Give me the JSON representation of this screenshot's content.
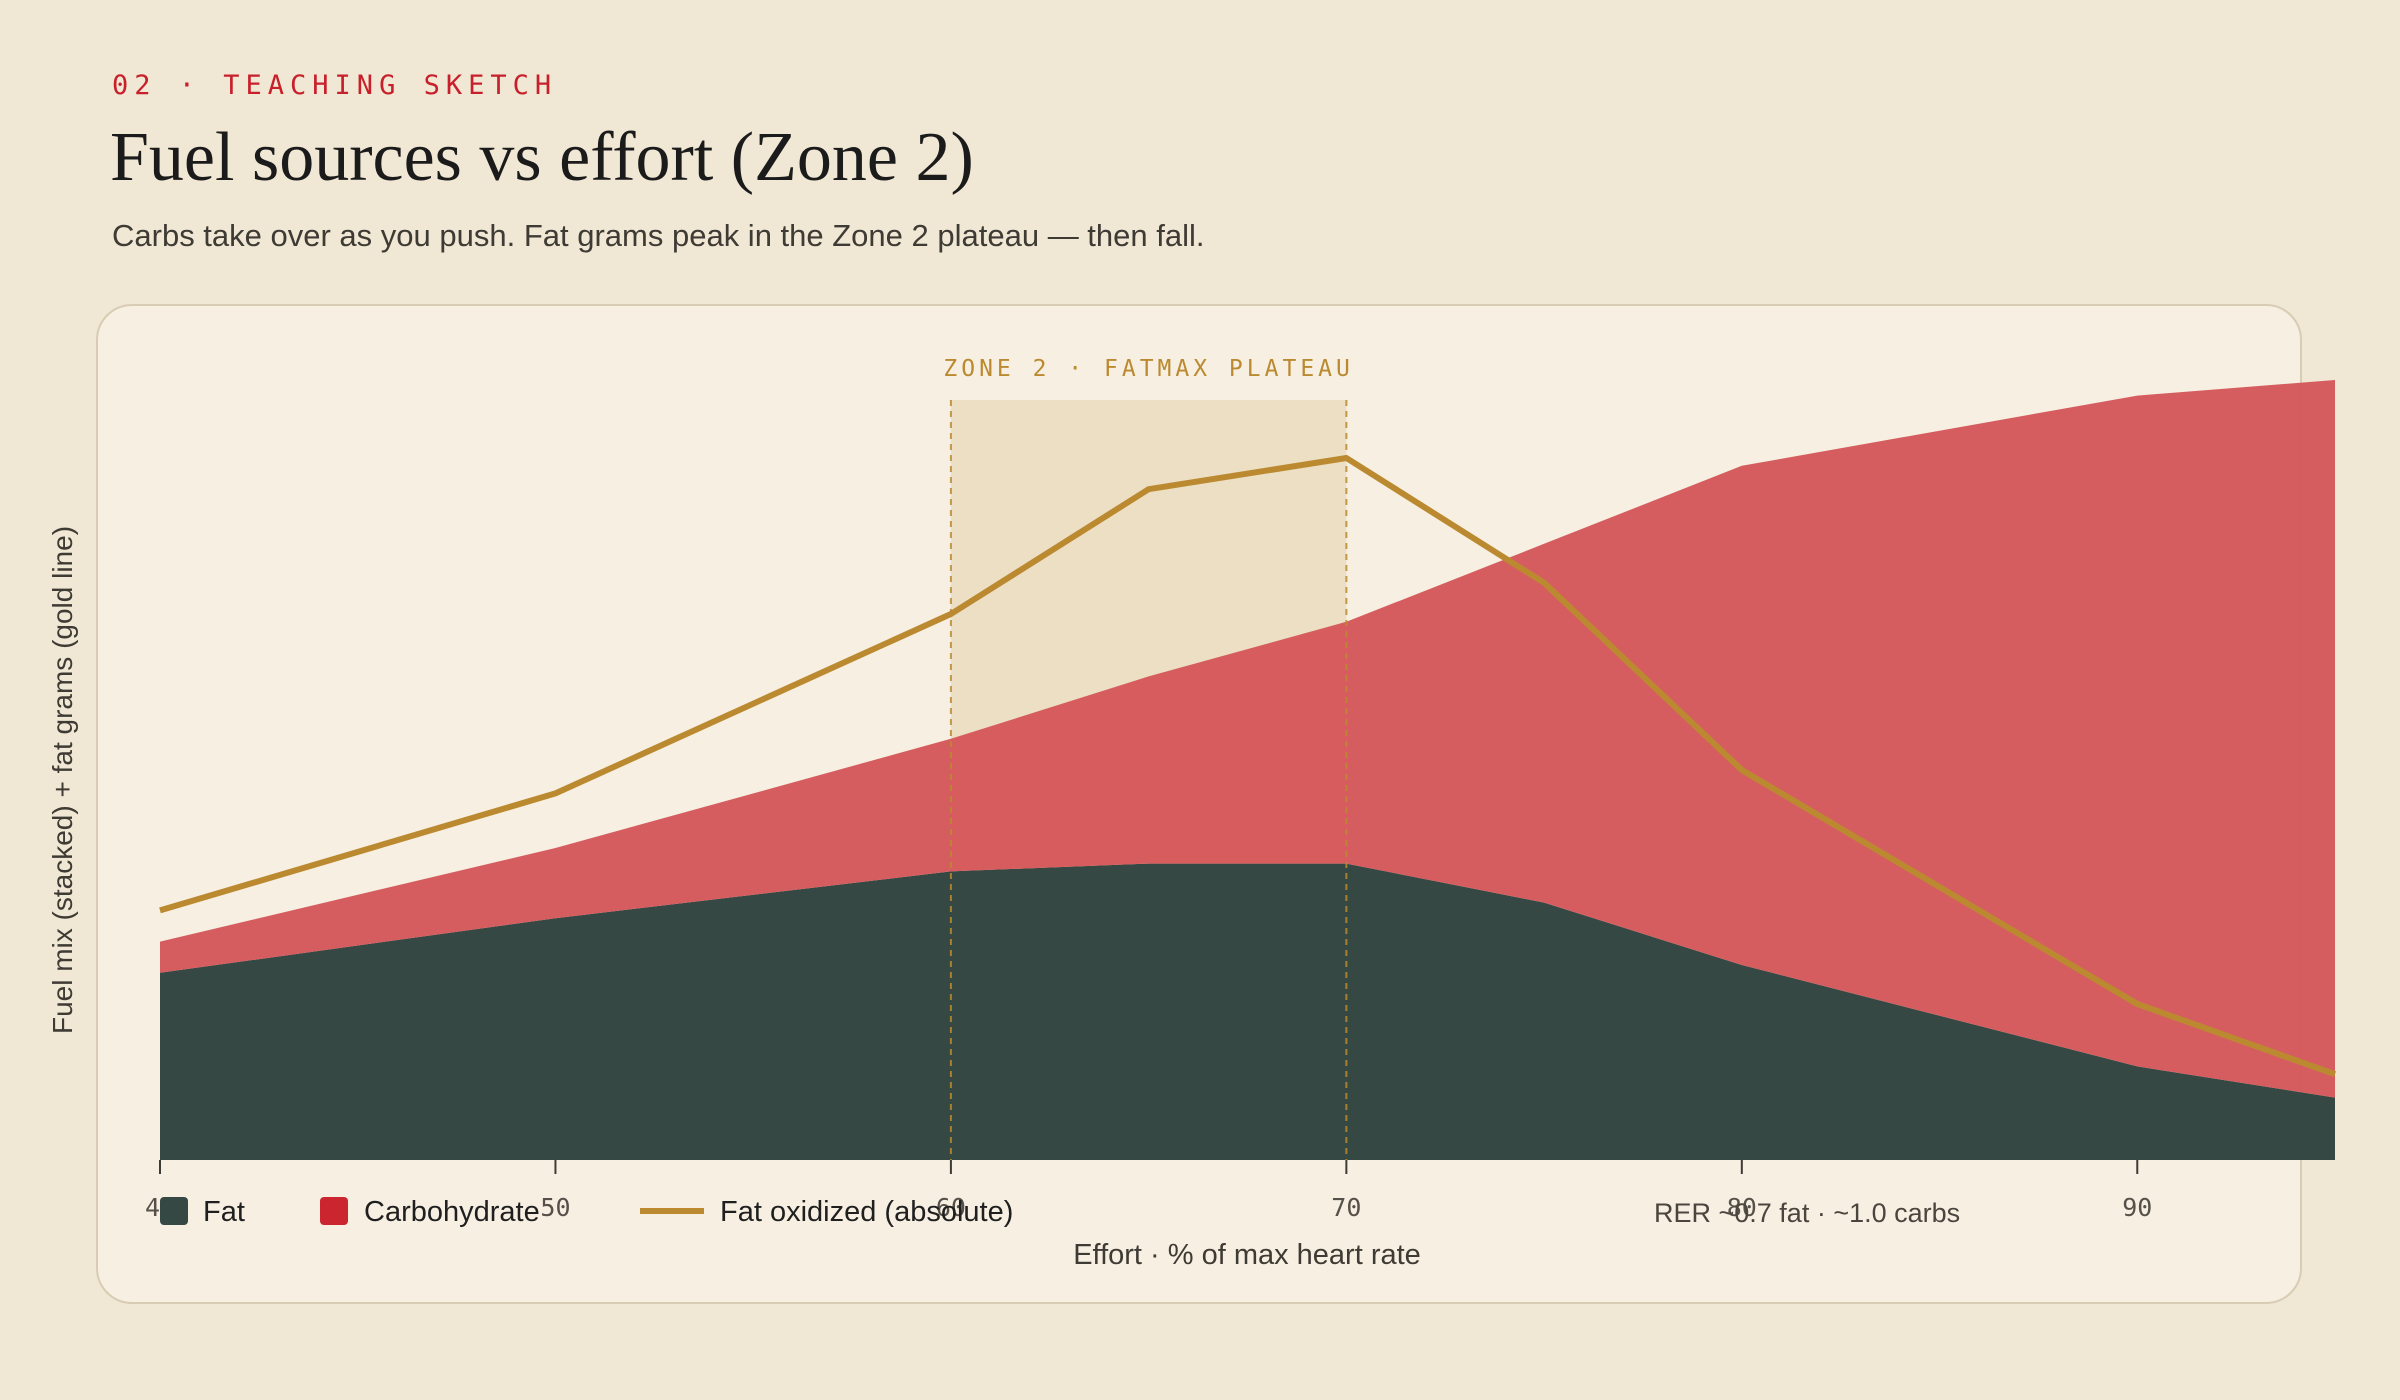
{
  "header": {
    "eyebrow": "02 · TEACHING SKETCH",
    "title": "Fuel sources vs effort (Zone 2)",
    "subtitle": "Carbs take over as you push. Fat grams peak in the Zone 2 plateau — then fall."
  },
  "colors": {
    "fat": "#354843",
    "carbohydrate": "#d5585b",
    "fat_line": "#bb8a30",
    "zone_band": "#ecdfc4",
    "zone_label": "#bb8a30"
  },
  "chart_data": {
    "type": "area",
    "x": [
      40,
      50,
      60,
      65,
      70,
      75,
      80,
      90,
      95
    ],
    "xlabel": "Effort · % of max heart rate",
    "ylabel": "Fuel mix (stacked) + fat grams (gold line)",
    "xticks": [
      40,
      50,
      60,
      70,
      80,
      90
    ],
    "xlim": [
      40,
      95
    ],
    "ylim": [
      0,
      100
    ],
    "grid": false,
    "legend_position": "bottom-left",
    "series": [
      {
        "name": "Fat",
        "kind": "stacked-area",
        "values": [
          24,
          31,
          37,
          38,
          38,
          33,
          25,
          12,
          8
        ]
      },
      {
        "name": "Carbohydrate",
        "kind": "stacked-area",
        "values": [
          4,
          9,
          17,
          24,
          31,
          46,
          64,
          86,
          92
        ]
      },
      {
        "name": "Fat oxidized (absolute)",
        "kind": "line",
        "values": [
          32,
          47,
          70,
          86,
          90,
          74,
          50,
          20,
          11
        ]
      }
    ],
    "zone": {
      "label": "ZONE 2 · FATMAX PLATEAU",
      "from": 60,
      "to": 70
    },
    "annotation": "RER ~0.7 fat · ~1.0 carbs"
  }
}
